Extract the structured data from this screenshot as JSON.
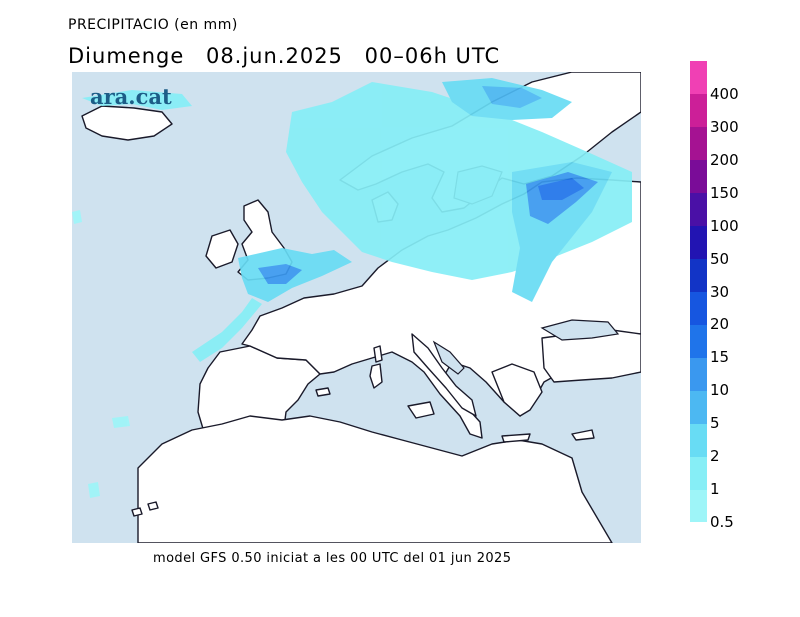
{
  "title_line1": "PRECIPITACIO (en mm)",
  "title_line2": {
    "day": "Diumenge",
    "date": "08.jun.2025",
    "period": "00–06h UTC"
  },
  "brand": "ara.cat",
  "footer": "model GFS 0.50 iniciat a les 00 UTC del 01 jun 2025",
  "colors": {
    "sea": "#cfe2ef",
    "land": "#ffffff",
    "coast": "#1a1a2a"
  },
  "legend": [
    {
      "label": "0.5",
      "color": "#9ef5f8"
    },
    {
      "label": "1",
      "color": "#86eef6"
    },
    {
      "label": "2",
      "color": "#68dcf4"
    },
    {
      "label": "5",
      "color": "#4cb8f2"
    },
    {
      "label": "10",
      "color": "#3a98ef"
    },
    {
      "label": "15",
      "color": "#1f74ea"
    },
    {
      "label": "20",
      "color": "#1656e0"
    },
    {
      "label": "30",
      "color": "#1234c6"
    },
    {
      "label": "50",
      "color": "#2214b2"
    },
    {
      "label": "100",
      "color": "#4a10a6"
    },
    {
      "label": "150",
      "color": "#7a0c98"
    },
    {
      "label": "200",
      "color": "#a51292"
    },
    {
      "label": "300",
      "color": "#cc1f98"
    },
    {
      "label": "400",
      "color": "#f040b4"
    }
  ]
}
